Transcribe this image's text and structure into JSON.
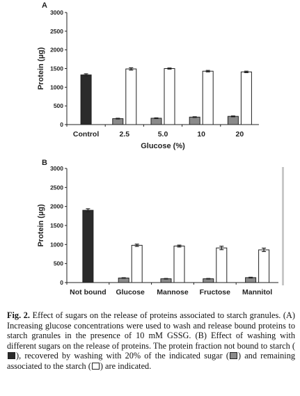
{
  "chart_data": [
    {
      "panel_label": "A",
      "type": "bar",
      "ylabel": "Protein (µg)",
      "xlabel": "Glucose (%)",
      "ylim": [
        0,
        3000
      ],
      "yticks": [
        "0",
        "500",
        "1000",
        "1500",
        "2000",
        "2500",
        "3000"
      ],
      "categories": [
        "Control",
        "2.5",
        "5.0",
        "10",
        "20"
      ],
      "series": [
        {
          "values": [
            1330,
            null,
            null,
            null,
            null
          ],
          "errors": [
            30,
            null,
            null,
            null,
            null
          ],
          "color": "#2b2b2b"
        },
        {
          "values": [
            null,
            160,
            170,
            200,
            220
          ],
          "errors": [
            null,
            10,
            10,
            10,
            12
          ],
          "color": "#8a8a8a"
        },
        {
          "values": [
            null,
            1490,
            1500,
            1430,
            1410
          ],
          "errors": [
            null,
            30,
            15,
            20,
            20
          ],
          "color": "#ffffff"
        }
      ]
    },
    {
      "panel_label": "B",
      "type": "bar",
      "ylabel": "Protein (µg)",
      "xlabel": "",
      "ylim": [
        0,
        3000
      ],
      "yticks": [
        "0",
        "500",
        "1000",
        "1500",
        "2000",
        "2500",
        "3000"
      ],
      "categories": [
        "Not bound",
        "Glucose",
        "Mannose",
        "Fructose",
        "Mannitol"
      ],
      "series": [
        {
          "values": [
            1900,
            null,
            null,
            null,
            null
          ],
          "errors": [
            40,
            null,
            null,
            null,
            null
          ],
          "color": "#2b2b2b"
        },
        {
          "values": [
            null,
            120,
            100,
            100,
            130
          ],
          "errors": [
            null,
            8,
            8,
            8,
            10
          ],
          "color": "#8a8a8a"
        },
        {
          "values": [
            null,
            980,
            960,
            910,
            860
          ],
          "errors": [
            null,
            30,
            25,
            45,
            45
          ],
          "color": "#ffffff"
        }
      ]
    }
  ],
  "caption": {
    "figure_label": "Fig. 2.",
    "text_1": " Effect of sugars on the release of proteins associated to starch granules. (A) Increasing glucose concentrations were used to wash and release bound proteins to starch granules in the presence of 10 mM GSSG. (B) Effect of washing with different sugars on the release of proteins. The protein fraction not bound to starch (",
    "text_2": "), recovered by washing with 20% of the indicated sugar (",
    "text_3": ") and remaining associated to the starch (",
    "text_4": ") are indicated."
  }
}
